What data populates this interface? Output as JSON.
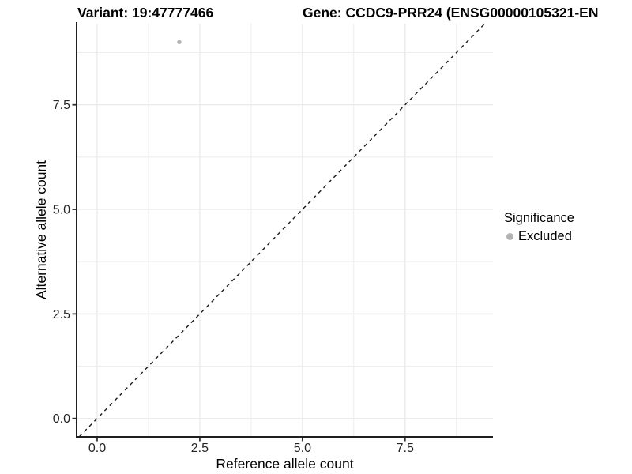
{
  "header": {
    "variant_title": "Variant: 19:47777466",
    "gene_title": "Gene: CCDC9-PRR24 (ENSG00000105321-EN"
  },
  "chart_data": {
    "type": "scatter",
    "xlabel": "Reference allele count",
    "ylabel": "Alternative allele count",
    "x_ticks": [
      0,
      2.5,
      5,
      7.5
    ],
    "x_tick_labels": [
      "0.0",
      "2.5",
      "5.0",
      "7.5"
    ],
    "y_ticks": [
      0,
      2.5,
      5,
      7.5
    ],
    "y_tick_labels": [
      "0.0",
      "2.5",
      "5.0",
      "7.5"
    ],
    "xlim": [
      -0.5,
      9.64
    ],
    "ylim": [
      -0.44,
      9.44
    ],
    "grid": {
      "major": true,
      "minor": true
    },
    "points": [
      {
        "x": 2,
        "y": 9,
        "series": "Excluded"
      }
    ],
    "reference_line": {
      "type": "identity",
      "style": "dashed"
    },
    "legend": {
      "title": "Significance",
      "position": "right",
      "items": [
        {
          "label": "Excluded",
          "color": "#b3b3b3"
        }
      ]
    },
    "colors": {
      "grid": "#ebebeb",
      "axis_line": "#1f1f1f",
      "tick": "#333333",
      "tick_label": "#262626",
      "point": "#b3b3b3",
      "reference_line": "#1a1a1a"
    }
  }
}
